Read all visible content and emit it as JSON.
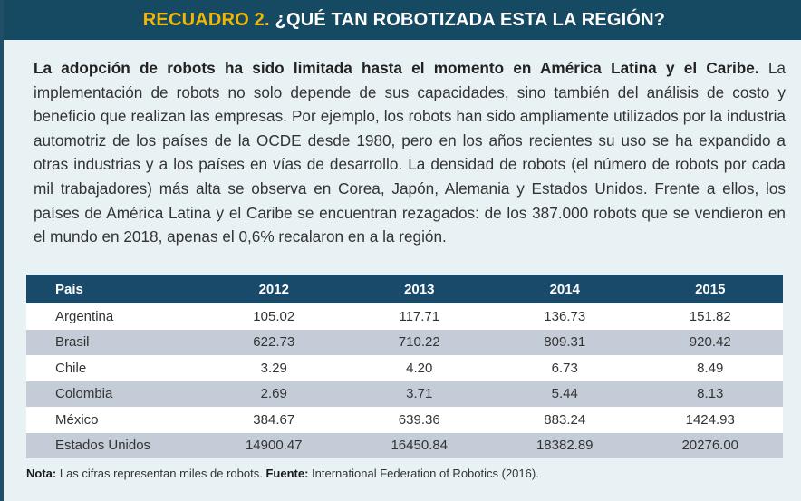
{
  "header": {
    "tag": "RECUADRO 2.",
    "title": "¿QUÉ TAN ROBOTIZADA ESTA LA REGIÓN?"
  },
  "intro": {
    "lead_bold": "La adopción de robots ha sido limitada hasta el momento en América Latina y el Caribe.",
    "body": "La implementación de robots no solo depende de sus capacidades, sino también del análisis de costo y beneficio que realizan las empresas. Por ejemplo, los robots han sido ampliamente utilizados por la industria automotriz de los países de la OCDE desde 1980, pero en los años recientes su uso se ha expandido a otras industrias y a los países en vías de desarrollo. La densidad de robots (el número de robots por cada mil trabajadores) más alta se observa en Corea, Japón, Alemania y Estados Unidos. Frente a ellos, los países de América Latina y el Caribe se encuentran rezagados: de los 387.000 robots que se vendieron en el mundo en 2018, apenas el 0,6% recalaron en a la región."
  },
  "table": {
    "headers": [
      "País",
      "2012",
      "2013",
      "2014",
      "2015"
    ],
    "rows": [
      [
        "Argentina",
        "105.02",
        "117.71",
        "136.73",
        "151.82"
      ],
      [
        "Brasil",
        "622.73",
        "710.22",
        "809.31",
        "920.42"
      ],
      [
        "Chile",
        "3.29",
        "4.20",
        "6.73",
        "8.49"
      ],
      [
        "Colombia",
        "2.69",
        "3.71",
        "5.44",
        "8.13"
      ],
      [
        "México",
        "384.67",
        "639.36",
        "883.24",
        "1424.93"
      ],
      [
        "Estados Unidos",
        "14900.47",
        "16450.84",
        "18382.89",
        "20276.00"
      ]
    ]
  },
  "note": {
    "label": "Nota:",
    "text": "Las cifras representan miles de robots.",
    "source_label": "Fuente:",
    "source_text": "International Federation of Robotics (2016)."
  },
  "colors": {
    "header_bg": "#154a62",
    "tag": "#f2b705",
    "table_header_bg": "#1a4a6a",
    "row_alt_bg": "#c4ccd7",
    "box_bg": "#e8f2f5"
  }
}
